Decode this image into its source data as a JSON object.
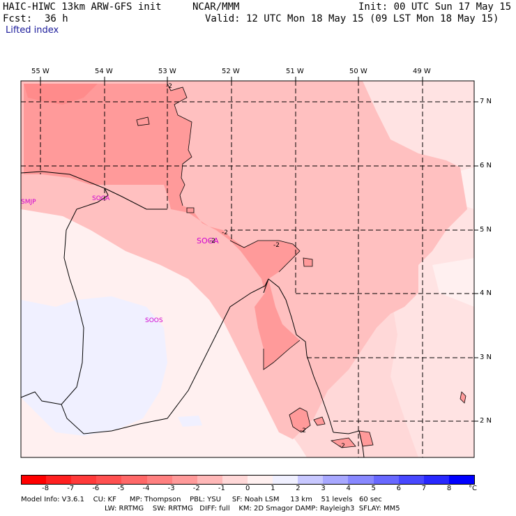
{
  "header": {
    "title_left": "HAIC-HIWC 13km ARW-GFS init",
    "title_center": "NCAR/MMM",
    "init": "Init: 00 UTC Sun 17 May 15",
    "fcst_label": "Fcst:",
    "fcst_value": "36 h",
    "valid": "Valid: 12 UTC Mon 18 May 15 (09 LST Mon 18 May 15)",
    "field": "Lifted index"
  },
  "axes": {
    "lon_labels": [
      "55 W",
      "54 W",
      "53 W",
      "52 W",
      "51 W",
      "50 W",
      "49 W"
    ],
    "lat_labels": [
      "7 N",
      "6 N",
      "5 N",
      "4 N",
      "3 N",
      "2 N"
    ]
  },
  "stations": [
    "SMJP",
    "SOCA",
    "SOGA",
    "SOOS"
  ],
  "contour_labels": [
    "-2",
    "-2",
    "-2",
    "-2",
    "-2",
    "-2"
  ],
  "colorbar": {
    "labels": [
      "-8",
      "-7",
      "-6",
      "-5",
      "-4",
      "-3",
      "-2",
      "-1",
      "0",
      "1",
      "2",
      "3",
      "4",
      "5",
      "6",
      "7",
      "8"
    ],
    "unit": "°C",
    "colors": [
      "#ff0000",
      "#ff2020",
      "#ff3a3a",
      "#ff5050",
      "#ff6868",
      "#ff8080",
      "#ff9a9a",
      "#ffb8b8",
      "#ffd8d8",
      "#fff0f0",
      "#f0f0ff",
      "#c8c8ff",
      "#a8a8ff",
      "#8888ff",
      "#6868ff",
      "#4848ff",
      "#2828ff",
      "#0000ff"
    ]
  },
  "footer": {
    "line1": "Model Info: V3.6.1    CU: KF      MP: Thompson    PBL: YSU     SF: Noah LSM     13 km    51 levels   60 sec",
    "line2": "LW: RRTMG    SW: RRTMG   DIFF: full    KM: 2D Smagor DAMP: Rayleigh3  SFLAY: MM5"
  }
}
